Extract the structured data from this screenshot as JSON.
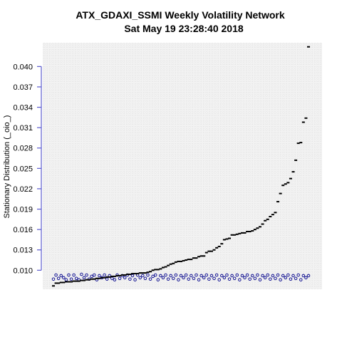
{
  "chart_data": {
    "type": "scatter",
    "title": "ATX_GDAXI_SSMI  Weekly Volatility Network",
    "subtitle": "Sat May 19 23:28:40 2018",
    "xlabel": "",
    "ylabel": "Stationary Distribution (_oio_)",
    "ylim": [
      0.0072,
      0.0435
    ],
    "yticks": [
      "0.010",
      "0.013",
      "0.016",
      "0.019",
      "0.022",
      "0.025",
      "0.028",
      "0.031",
      "0.034",
      "0.037",
      "0.040"
    ],
    "grid": true,
    "series": [
      {
        "marker": "dash",
        "color": "#000000",
        "values": [
          0.0077,
          0.0081,
          0.0081,
          0.0082,
          0.0082,
          0.0083,
          0.0083,
          0.0083,
          0.0084,
          0.0084,
          0.0084,
          0.0085,
          0.0085,
          0.0086,
          0.0086,
          0.0087,
          0.0087,
          0.0088,
          0.0088,
          0.0089,
          0.0089,
          0.009,
          0.009,
          0.0091,
          0.0091,
          0.0092,
          0.0092,
          0.0093,
          0.0093,
          0.0094,
          0.0094,
          0.0095,
          0.0095,
          0.0095,
          0.0096,
          0.0096,
          0.0096,
          0.0097,
          0.0098,
          0.01,
          0.0101,
          0.0101,
          0.0102,
          0.0104,
          0.0105,
          0.0107,
          0.0109,
          0.011,
          0.0112,
          0.0113,
          0.0113,
          0.0114,
          0.0115,
          0.0116,
          0.0116,
          0.0118,
          0.0118,
          0.012,
          0.0121,
          0.0121,
          0.0126,
          0.0128,
          0.0128,
          0.013,
          0.0133,
          0.0135,
          0.0139,
          0.0145,
          0.0146,
          0.0147,
          0.0152,
          0.0152,
          0.0153,
          0.0154,
          0.0155,
          0.0155,
          0.0157,
          0.0157,
          0.0158,
          0.016,
          0.0162,
          0.0164,
          0.0168,
          0.0173,
          0.0175,
          0.0179,
          0.0182,
          0.0185,
          0.0201,
          0.0213,
          0.0225,
          0.0227,
          0.0229,
          0.0235,
          0.0245,
          0.0262,
          0.0287,
          0.0288,
          0.0318,
          0.0324,
          0.0429
        ]
      },
      {
        "marker": "circle",
        "color": "#00008b",
        "values": [
          0.0087,
          0.0093,
          0.0088,
          0.0092,
          0.0089,
          0.0086,
          0.0093,
          0.0087,
          0.0093,
          0.0088,
          0.0086,
          0.0094,
          0.0089,
          0.0093,
          0.0087,
          0.0091,
          0.0093,
          0.0086,
          0.0092,
          0.0089,
          0.0093,
          0.0087,
          0.0092,
          0.0088,
          0.0086,
          0.0093,
          0.0088,
          0.0092,
          0.0089,
          0.0093,
          0.0087,
          0.0092,
          0.0086,
          0.0093,
          0.0089,
          0.0092,
          0.0088,
          0.0093,
          0.0087,
          0.0091,
          0.0093,
          0.0086,
          0.0092,
          0.0089,
          0.0093,
          0.0087,
          0.0092,
          0.0088,
          0.0093,
          0.0086,
          0.0092,
          0.0089,
          0.0093,
          0.0087,
          0.0092,
          0.0088,
          0.0093,
          0.0086,
          0.0092,
          0.0089,
          0.0093,
          0.0087,
          0.0092,
          0.0088,
          0.0093,
          0.0086,
          0.0092,
          0.0089,
          0.0093,
          0.0087,
          0.0092,
          0.0088,
          0.0093,
          0.0086,
          0.0092,
          0.0089,
          0.0093,
          0.0087,
          0.0092,
          0.0088,
          0.0093,
          0.0086,
          0.0092,
          0.0089,
          0.0093,
          0.0087,
          0.0092,
          0.0088,
          0.0093,
          0.0086,
          0.0092,
          0.0089,
          0.0093,
          0.0087,
          0.0092,
          0.0088,
          0.0093,
          0.0086,
          0.0092,
          0.0089,
          0.0092
        ]
      }
    ]
  },
  "colors": {
    "axis": "#5a5acd",
    "grid": "#d9d9d9",
    "plot_background": "#f2f2f2",
    "series_a": "#000000",
    "series_b": "#00008b"
  }
}
